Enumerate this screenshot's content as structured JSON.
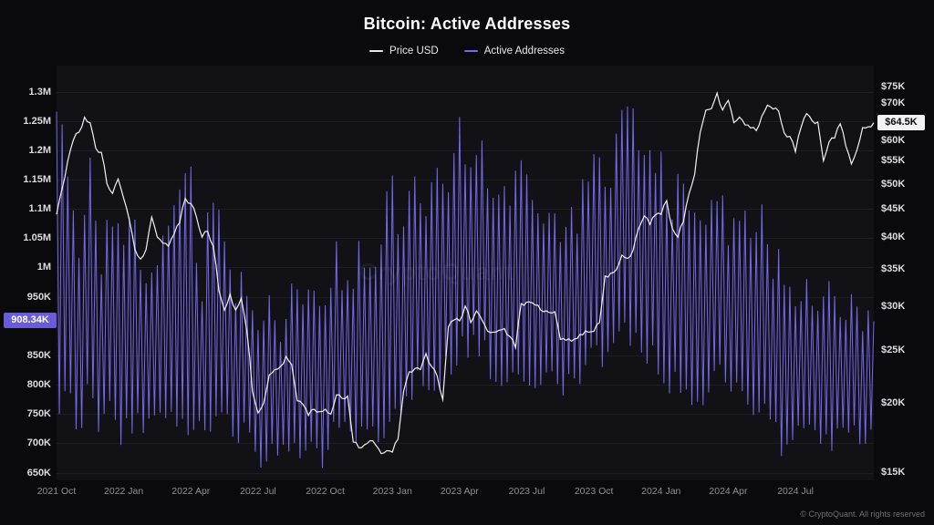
{
  "title": "Bitcoin: Active Addresses",
  "watermark": "CryptoQuant",
  "footer": "© CryptoQuant. All rights reserved",
  "legend": [
    {
      "label": "Price USD",
      "color": "#e8e8ec"
    },
    {
      "label": "Active Addresses",
      "color": "#7468ec"
    }
  ],
  "colors": {
    "page_bg": "#0a0a0d",
    "plot_bg": "#121216",
    "price": "#f2f2f4",
    "addresses": "#7468ec",
    "grid": "rgba(255,255,255,0.05)"
  },
  "axes": {
    "left": {
      "ticks": [
        {
          "label": "1.3M",
          "value": 1300
        },
        {
          "label": "1.25M",
          "value": 1250
        },
        {
          "label": "1.2M",
          "value": 1200
        },
        {
          "label": "1.15M",
          "value": 1150
        },
        {
          "label": "1.1M",
          "value": 1100
        },
        {
          "label": "1.05M",
          "value": 1050
        },
        {
          "label": "1M",
          "value": 1000
        },
        {
          "label": "950K",
          "value": 950
        },
        {
          "label": "850K",
          "value": 850
        },
        {
          "label": "800K",
          "value": 800
        },
        {
          "label": "750K",
          "value": 750
        },
        {
          "label": "700K",
          "value": 700
        },
        {
          "label": "650K",
          "value": 650
        }
      ],
      "badge": {
        "label": "908.34K",
        "value": 908.34,
        "bg": "#6a5cd8"
      }
    },
    "right": {
      "ticks": [
        {
          "label": "$75K",
          "value": 75
        },
        {
          "label": "$70K",
          "value": 70
        },
        {
          "label": "$60K",
          "value": 60
        },
        {
          "label": "$55K",
          "value": 55
        },
        {
          "label": "$50K",
          "value": 50
        },
        {
          "label": "$45K",
          "value": 45
        },
        {
          "label": "$40K",
          "value": 40
        },
        {
          "label": "$35K",
          "value": 35
        },
        {
          "label": "$30K",
          "value": 30
        },
        {
          "label": "$25K",
          "value": 25
        },
        {
          "label": "$20K",
          "value": 20
        },
        {
          "label": "$15K",
          "value": 15
        }
      ],
      "badge": {
        "label": "$64.5K",
        "value": 64.5
      }
    },
    "x": {
      "ticks": [
        {
          "label": "2021 Oct",
          "t": 0
        },
        {
          "label": "2022 Jan",
          "t": 3
        },
        {
          "label": "2022 Apr",
          "t": 6
        },
        {
          "label": "2022 Jul",
          "t": 9
        },
        {
          "label": "2022 Oct",
          "t": 12
        },
        {
          "label": "2023 Jan",
          "t": 15
        },
        {
          "label": "2023 Apr",
          "t": 18
        },
        {
          "label": "2023 Jul",
          "t": 21
        },
        {
          "label": "2023 Oct",
          "t": 24
        },
        {
          "label": "2024 Jan",
          "t": 27
        },
        {
          "label": "2024 Apr",
          "t": 30
        },
        {
          "label": "2024 Jul",
          "t": 33
        }
      ]
    }
  },
  "chart_data": {
    "type": "line",
    "title": "Bitcoin: Active Addresses",
    "legend_position": "top",
    "x_range_months": 36.5,
    "x_start": "2021 Oct",
    "x_end": "2024 Oct",
    "left_axis": {
      "label": "Active Addresses",
      "scale": "linear",
      "ylim_thousands": [
        640,
        1332
      ]
    },
    "right_axis": {
      "label": "Price USD",
      "scale": "log",
      "ylim_thousands_usd": [
        14.6,
        79.4
      ]
    },
    "series": [
      {
        "name": "Price USD",
        "axis": "right",
        "unit": "thousand USD",
        "step_months": 0.25,
        "values": [
          44,
          49,
          55,
          60,
          62,
          66,
          64.5,
          58,
          57,
          50,
          48,
          51,
          47,
          43,
          38,
          36.5,
          38,
          43.5,
          40,
          39,
          38.5,
          40.5,
          42.5,
          47,
          46,
          43.5,
          40,
          41,
          38.5,
          32,
          29.5,
          31.5,
          29.5,
          31,
          27,
          21,
          19.2,
          20,
          22.5,
          23,
          23.3,
          24.3,
          23.5,
          20.2,
          19.9,
          19,
          19.5,
          19.3,
          19.5,
          19.1,
          20.7,
          20.4,
          20.6,
          17,
          16.6,
          16.8,
          17.1,
          16.8,
          16.2,
          16.4,
          16.3,
          17.2,
          21,
          22.8,
          23.1,
          23,
          24.6,
          23.3,
          22.4,
          20.3,
          27.5,
          28.3,
          28.2,
          30,
          28,
          29.4,
          28.3,
          27,
          26.9,
          27.1,
          27.3,
          26.4,
          25.2,
          30.3,
          30.5,
          30.4,
          30.1,
          29.3,
          29.2,
          29.3,
          26.1,
          26,
          25.9,
          26.2,
          26.6,
          26.9,
          27,
          28,
          34,
          34.4,
          34.9,
          37.1,
          36.6,
          37.9,
          41.5,
          43.7,
          42.2,
          43.9,
          44,
          46.6,
          41.5,
          40,
          42.7,
          48,
          52,
          62,
          68,
          68.4,
          73,
          68,
          70.8,
          64.5,
          66,
          63.9,
          63.1,
          62.4,
          66.3,
          69.4,
          68.3,
          67.7,
          61.8,
          60.9,
          57.1,
          63.2,
          67,
          65,
          64.7,
          55,
          59.5,
          60.5,
          64.2,
          58.5,
          54.3,
          57.6,
          63.2,
          63.4,
          64.5
        ]
      },
      {
        "name": "Active Addresses",
        "axis": "left",
        "unit": "thousand addresses",
        "oscillation": "weekly",
        "step_months": 0.5,
        "envelope_high": [
          1330,
          1180,
          1110,
          1220,
          1070,
          1120,
          1060,
          1150,
          1010,
          1090,
          1100,
          1150,
          1190,
          1010,
          1190,
          1060,
          990,
          1010,
          960,
          990,
          910,
          990,
          960,
          1000,
          990,
          1060,
          1010,
          1060,
          1030,
          1090,
          1190,
          1110,
          1160,
          1130,
          1260,
          1160,
          1290,
          1210,
          1240,
          1190,
          1160,
          1230,
          1170,
          1110,
          1140,
          1090,
          1110,
          1160,
          1210,
          1190,
          1260,
          1310,
          1270,
          1290,
          1230,
          1160,
          1210,
          1110,
          1160,
          1190,
          1110,
          1160,
          1060,
          1110,
          1010,
          1060,
          990,
          1010,
          960,
          990,
          930,
          960,
          910,
          950
        ],
        "envelope_low": [
          690,
          760,
          700,
          750,
          690,
          740,
          680,
          720,
          700,
          730,
          700,
          720,
          700,
          720,
          700,
          730,
          700,
          690,
          660,
          650,
          670,
          690,
          660,
          680,
          650,
          700,
          690,
          700,
          680,
          700,
          720,
          750,
          780,
          760,
          780,
          800,
          820,
          850,
          830,
          800,
          780,
          820,
          800,
          780,
          800,
          760,
          790,
          800,
          820,
          830,
          850,
          870,
          850,
          830,
          800,
          780,
          760,
          720,
          780,
          800,
          780,
          760,
          740,
          750,
          720,
          660,
          700,
          720,
          700,
          680,
          700,
          720,
          680,
          700
        ],
        "current": 908.34
      }
    ]
  }
}
